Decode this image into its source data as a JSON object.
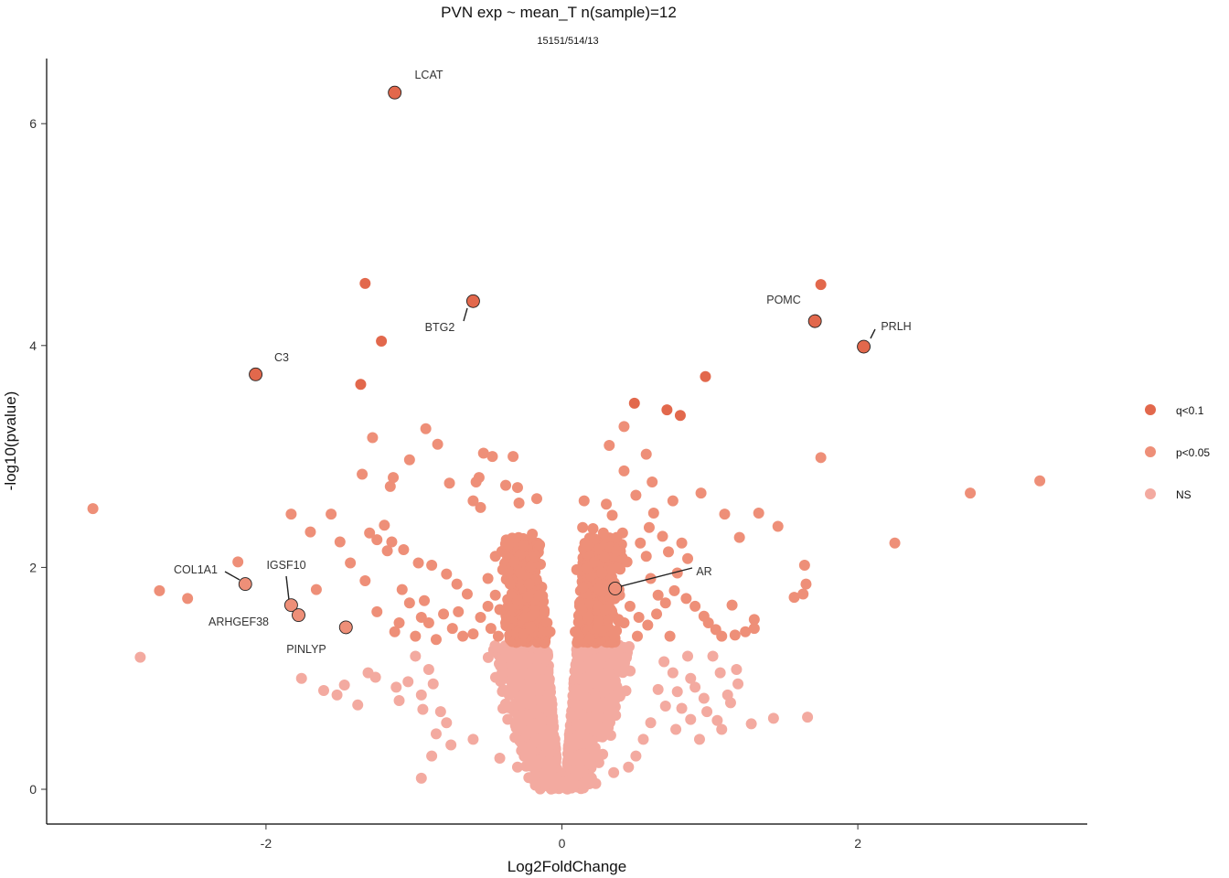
{
  "chart_data": {
    "type": "scatter",
    "title": "PVN exp ~ mean_T n(sample)=12",
    "subtitle": "15151/514/13",
    "xlabel": "Log2FoldChange",
    "ylabel": "-log10(pvalue)",
    "xlim": [
      -3.5,
      3.5
    ],
    "ylim": [
      -0.3,
      6.6
    ],
    "xticks": [
      -2,
      0,
      2
    ],
    "yticks": [
      0,
      2,
      4,
      6
    ],
    "grid": false,
    "legend_position": "right",
    "categories": [
      {
        "key": "q",
        "name": "q<0.1",
        "color": "#E2684C"
      },
      {
        "key": "p",
        "name": "p<0.05",
        "color": "#EE8F78"
      },
      {
        "key": "ns",
        "name": "NS",
        "color": "#F3AAA0"
      }
    ],
    "labeled_points": [
      {
        "gene": "LCAT",
        "x": -1.13,
        "y": 6.28,
        "group": "q"
      },
      {
        "gene": "BTG2",
        "x": -0.6,
        "y": 4.4,
        "group": "q"
      },
      {
        "gene": "C3",
        "x": -2.07,
        "y": 3.74,
        "group": "q"
      },
      {
        "gene": "POMC",
        "x": 1.71,
        "y": 4.22,
        "group": "q"
      },
      {
        "gene": "PRLH",
        "x": 2.04,
        "y": 3.99,
        "group": "q"
      },
      {
        "gene": "AR",
        "x": 0.36,
        "y": 1.81,
        "group": "p"
      },
      {
        "gene": "COL1A1",
        "x": -2.14,
        "y": 1.85,
        "group": "p"
      },
      {
        "gene": "IGSF10",
        "x": -1.83,
        "y": 1.66,
        "group": "p"
      },
      {
        "gene": "ARHGEF38",
        "x": -1.78,
        "y": 1.57,
        "group": "p"
      },
      {
        "gene": "PINLYP",
        "x": -1.46,
        "y": 1.46,
        "group": "p"
      }
    ],
    "points_q": [
      [
        -1.33,
        4.56
      ],
      [
        -1.22,
        4.04
      ],
      [
        -1.36,
        3.65
      ],
      [
        1.75,
        4.55
      ],
      [
        0.97,
        3.72
      ],
      [
        0.49,
        3.48
      ],
      [
        0.71,
        3.42
      ],
      [
        0.8,
        3.37
      ]
    ],
    "points_p": [
      [
        -3.17,
        2.53
      ],
      [
        -2.72,
        1.79
      ],
      [
        -2.53,
        1.72
      ],
      [
        -2.19,
        2.05
      ],
      [
        -1.83,
        2.48
      ],
      [
        -1.7,
        2.32
      ],
      [
        -1.56,
        2.48
      ],
      [
        -1.5,
        2.23
      ],
      [
        -1.43,
        2.04
      ],
      [
        -1.66,
        1.8
      ],
      [
        -1.33,
        1.88
      ],
      [
        -1.3,
        2.31
      ],
      [
        -1.25,
        2.25
      ],
      [
        -1.2,
        2.38
      ],
      [
        -1.15,
        2.23
      ],
      [
        -1.28,
        3.17
      ],
      [
        -1.35,
        2.84
      ],
      [
        -1.14,
        2.81
      ],
      [
        -1.16,
        2.73
      ],
      [
        -1.03,
        2.97
      ],
      [
        -0.92,
        3.25
      ],
      [
        -0.84,
        3.11
      ],
      [
        -0.76,
        2.76
      ],
      [
        -0.53,
        3.03
      ],
      [
        -0.47,
        3.0
      ],
      [
        -0.33,
        3.0
      ],
      [
        -0.56,
        2.81
      ],
      [
        -0.58,
        2.77
      ],
      [
        -0.38,
        2.74
      ],
      [
        -0.3,
        2.72
      ],
      [
        -0.6,
        2.6
      ],
      [
        -0.55,
        2.54
      ],
      [
        -0.29,
        2.58
      ],
      [
        -0.17,
        2.62
      ],
      [
        -1.18,
        2.15
      ],
      [
        -1.07,
        2.16
      ],
      [
        -0.97,
        2.04
      ],
      [
        -0.88,
        2.02
      ],
      [
        -1.08,
        1.8
      ],
      [
        -1.03,
        1.68
      ],
      [
        -0.93,
        1.7
      ],
      [
        -0.78,
        1.94
      ],
      [
        -0.71,
        1.85
      ],
      [
        -0.64,
        1.76
      ],
      [
        -1.1,
        1.5
      ],
      [
        -1.25,
        1.6
      ],
      [
        -1.13,
        1.42
      ],
      [
        -0.99,
        1.38
      ],
      [
        -0.9,
        1.5
      ],
      [
        -0.8,
        1.58
      ],
      [
        -0.74,
        1.45
      ],
      [
        -0.67,
        1.38
      ],
      [
        -0.5,
        1.9
      ],
      [
        -0.45,
        1.75
      ],
      [
        -0.42,
        1.62
      ],
      [
        -0.38,
        1.5
      ],
      [
        -0.35,
        1.85
      ],
      [
        -0.3,
        1.7
      ],
      [
        -0.25,
        1.55
      ],
      [
        -0.48,
        1.45
      ],
      [
        -0.36,
        2.2
      ],
      [
        -0.32,
        2.05
      ],
      [
        -0.28,
        1.95
      ],
      [
        -0.22,
        1.85
      ],
      [
        -0.2,
        2.3
      ],
      [
        -0.18,
        2.1
      ],
      [
        -0.15,
        1.75
      ],
      [
        -0.12,
        1.6
      ],
      [
        -0.1,
        1.5
      ],
      [
        -0.55,
        1.55
      ],
      [
        -0.45,
        2.1
      ],
      [
        -0.4,
        1.98
      ],
      [
        -0.5,
        1.65
      ],
      [
        -0.43,
        1.38
      ],
      [
        -0.26,
        1.4
      ],
      [
        -0.08,
        1.42
      ],
      [
        -0.6,
        1.4
      ],
      [
        -0.85,
        1.35
      ],
      [
        -0.95,
        1.55
      ],
      [
        -0.7,
        1.6
      ],
      [
        0.3,
        2.57
      ],
      [
        0.34,
        2.47
      ],
      [
        0.14,
        2.36
      ],
      [
        0.21,
        2.35
      ],
      [
        0.28,
        2.31
      ],
      [
        0.41,
        2.31
      ],
      [
        0.53,
        2.22
      ],
      [
        0.59,
        2.36
      ],
      [
        0.62,
        2.49
      ],
      [
        0.68,
        2.28
      ],
      [
        0.72,
        2.14
      ],
      [
        0.81,
        2.22
      ],
      [
        0.85,
        2.08
      ],
      [
        0.57,
        2.1
      ],
      [
        0.44,
        2.05
      ],
      [
        0.37,
        2.15
      ],
      [
        0.17,
        2.2
      ],
      [
        0.22,
        2.05
      ],
      [
        0.27,
        1.95
      ],
      [
        0.33,
        1.85
      ],
      [
        0.39,
        1.75
      ],
      [
        0.46,
        1.65
      ],
      [
        0.52,
        1.55
      ],
      [
        0.58,
        1.48
      ],
      [
        0.64,
        1.58
      ],
      [
        0.7,
        1.68
      ],
      [
        0.76,
        1.79
      ],
      [
        0.84,
        1.72
      ],
      [
        0.9,
        1.65
      ],
      [
        0.96,
        1.56
      ],
      [
        0.99,
        1.5
      ],
      [
        1.04,
        1.44
      ],
      [
        1.08,
        1.38
      ],
      [
        1.17,
        1.39
      ],
      [
        1.24,
        1.42
      ],
      [
        1.3,
        1.45
      ],
      [
        1.15,
        1.66
      ],
      [
        0.1,
        1.98
      ],
      [
        0.14,
        1.82
      ],
      [
        0.12,
        1.68
      ],
      [
        0.18,
        1.55
      ],
      [
        0.24,
        1.45
      ],
      [
        0.09,
        1.42
      ],
      [
        0.6,
        1.9
      ],
      [
        0.65,
        1.75
      ],
      [
        0.78,
        1.95
      ],
      [
        0.73,
        1.38
      ],
      [
        0.51,
        1.38
      ],
      [
        0.29,
        1.62
      ],
      [
        0.42,
        1.5
      ],
      [
        0.35,
        1.4
      ],
      [
        0.15,
        2.6
      ],
      [
        0.37,
        2.27
      ],
      [
        0.5,
        2.65
      ],
      [
        0.61,
        2.77
      ],
      [
        0.42,
        2.87
      ],
      [
        0.57,
        3.02
      ],
      [
        0.32,
        3.1
      ],
      [
        0.42,
        3.27
      ],
      [
        0.94,
        2.67
      ],
      [
        1.1,
        2.48
      ],
      [
        1.33,
        2.49
      ],
      [
        1.46,
        2.37
      ],
      [
        1.64,
        2.02
      ],
      [
        1.65,
        1.85
      ],
      [
        1.63,
        1.76
      ],
      [
        1.57,
        1.73
      ],
      [
        1.2,
        2.27
      ],
      [
        1.3,
        1.53
      ],
      [
        1.75,
        2.99
      ],
      [
        2.25,
        2.22
      ],
      [
        2.76,
        2.67
      ],
      [
        3.23,
        2.78
      ],
      [
        0.75,
        2.6
      ]
    ],
    "points_ns": [
      [
        -2.85,
        1.19
      ],
      [
        -1.76,
        1.0
      ],
      [
        -1.61,
        0.89
      ],
      [
        -1.52,
        0.85
      ],
      [
        -1.47,
        0.94
      ],
      [
        -1.38,
        0.76
      ],
      [
        -1.31,
        1.05
      ],
      [
        -1.26,
        1.01
      ],
      [
        -1.12,
        0.92
      ],
      [
        -1.04,
        0.97
      ],
      [
        -1.1,
        0.8
      ],
      [
        -0.99,
        1.2
      ],
      [
        -0.95,
        0.85
      ],
      [
        -0.9,
        1.08
      ],
      [
        -0.87,
        0.95
      ],
      [
        -0.82,
        0.7
      ],
      [
        -0.78,
        0.6
      ],
      [
        -0.94,
        0.72
      ],
      [
        -0.85,
        0.5
      ],
      [
        -0.75,
        0.4
      ],
      [
        -0.88,
        0.3
      ],
      [
        -0.95,
        0.1
      ],
      [
        -0.6,
        0.45
      ],
      [
        -0.42,
        0.28
      ],
      [
        -0.3,
        0.2
      ],
      [
        -0.1,
        0.05
      ],
      [
        1.02,
        1.2
      ],
      [
        1.07,
        1.05
      ],
      [
        1.19,
        0.95
      ],
      [
        1.12,
        0.85
      ],
      [
        0.9,
        0.92
      ],
      [
        0.96,
        0.82
      ],
      [
        0.81,
        0.73
      ],
      [
        0.87,
        0.63
      ],
      [
        0.77,
        0.54
      ],
      [
        1.05,
        0.62
      ],
      [
        1.08,
        0.54
      ],
      [
        0.93,
        0.45
      ],
      [
        0.87,
        1.0
      ],
      [
        0.78,
        0.88
      ],
      [
        1.28,
        0.59
      ],
      [
        1.43,
        0.64
      ],
      [
        1.66,
        0.65
      ],
      [
        0.69,
        1.15
      ],
      [
        0.75,
        1.05
      ],
      [
        0.85,
        1.2
      ],
      [
        0.65,
        0.9
      ],
      [
        0.7,
        0.75
      ],
      [
        0.6,
        0.6
      ],
      [
        0.55,
        0.45
      ],
      [
        0.5,
        0.3
      ],
      [
        0.45,
        0.2
      ],
      [
        0.35,
        0.15
      ],
      [
        0.2,
        0.1
      ],
      [
        1.14,
        0.78
      ],
      [
        1.18,
        1.08
      ],
      [
        0.98,
        0.7
      ]
    ]
  }
}
